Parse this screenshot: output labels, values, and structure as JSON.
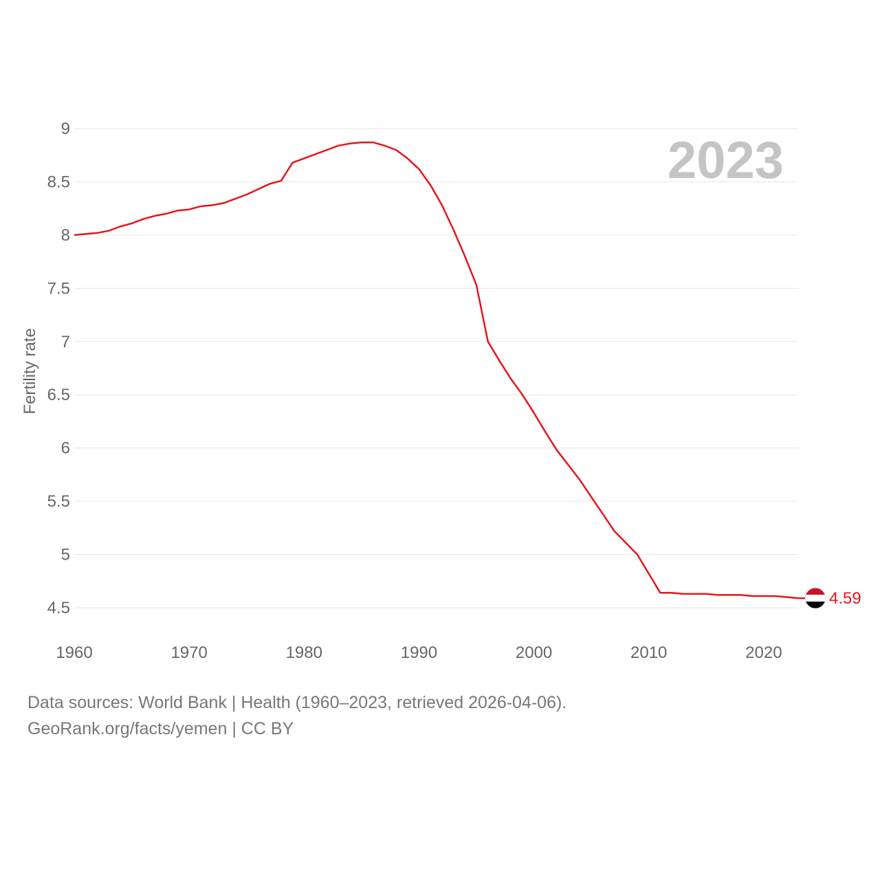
{
  "chart_data": {
    "type": "line",
    "title": "",
    "year_label": "2023",
    "ylabel": "Fertility rate",
    "xlabel": "",
    "xlim": [
      1960,
      2023
    ],
    "ylim": [
      4.5,
      9
    ],
    "x_ticks": [
      1960,
      1970,
      1980,
      1990,
      2000,
      2010,
      2020
    ],
    "y_ticks": [
      "4.5",
      "5",
      "5.5",
      "6",
      "6.5",
      "7",
      "7.5",
      "8",
      "8.5",
      "9"
    ],
    "series": [
      {
        "name": "Yemen",
        "color": "#e8141b",
        "x": [
          1960,
          1961,
          1962,
          1963,
          1964,
          1965,
          1966,
          1967,
          1968,
          1969,
          1970,
          1971,
          1972,
          1973,
          1974,
          1975,
          1976,
          1977,
          1978,
          1979,
          1980,
          1981,
          1982,
          1983,
          1984,
          1985,
          1986,
          1987,
          1988,
          1989,
          1990,
          1991,
          1992,
          1993,
          1994,
          1995,
          1996,
          1997,
          1998,
          1999,
          2000,
          2001,
          2002,
          2003,
          2004,
          2005,
          2006,
          2007,
          2008,
          2009,
          2010,
          2011,
          2012,
          2013,
          2014,
          2015,
          2016,
          2017,
          2018,
          2019,
          2020,
          2021,
          2022,
          2023
        ],
        "values": [
          8.0,
          8.01,
          8.02,
          8.04,
          8.08,
          8.11,
          8.15,
          8.18,
          8.2,
          8.23,
          8.24,
          8.27,
          8.28,
          8.3,
          8.34,
          8.38,
          8.43,
          8.48,
          8.51,
          8.68,
          8.72,
          8.76,
          8.8,
          8.84,
          8.86,
          8.87,
          8.87,
          8.84,
          8.8,
          8.72,
          8.62,
          8.47,
          8.28,
          8.05,
          7.8,
          7.53,
          7.0,
          6.82,
          6.65,
          6.5,
          6.33,
          6.15,
          5.98,
          5.84,
          5.7,
          5.54,
          5.38,
          5.22,
          5.11,
          5.0,
          4.82,
          4.64,
          4.64,
          4.63,
          4.63,
          4.63,
          4.62,
          4.62,
          4.62,
          4.61,
          4.61,
          4.61,
          4.6,
          4.59
        ]
      }
    ],
    "end_label": "4.59",
    "flag": {
      "country": "Yemen",
      "colors": [
        "#ce1126",
        "#ffffff",
        "#000000"
      ]
    }
  },
  "footer": {
    "line1": "Data sources: World Bank | Health (1960–2023, retrieved 2026-04-06).",
    "line2": "GeoRank.org/facts/yemen | CC BY"
  }
}
